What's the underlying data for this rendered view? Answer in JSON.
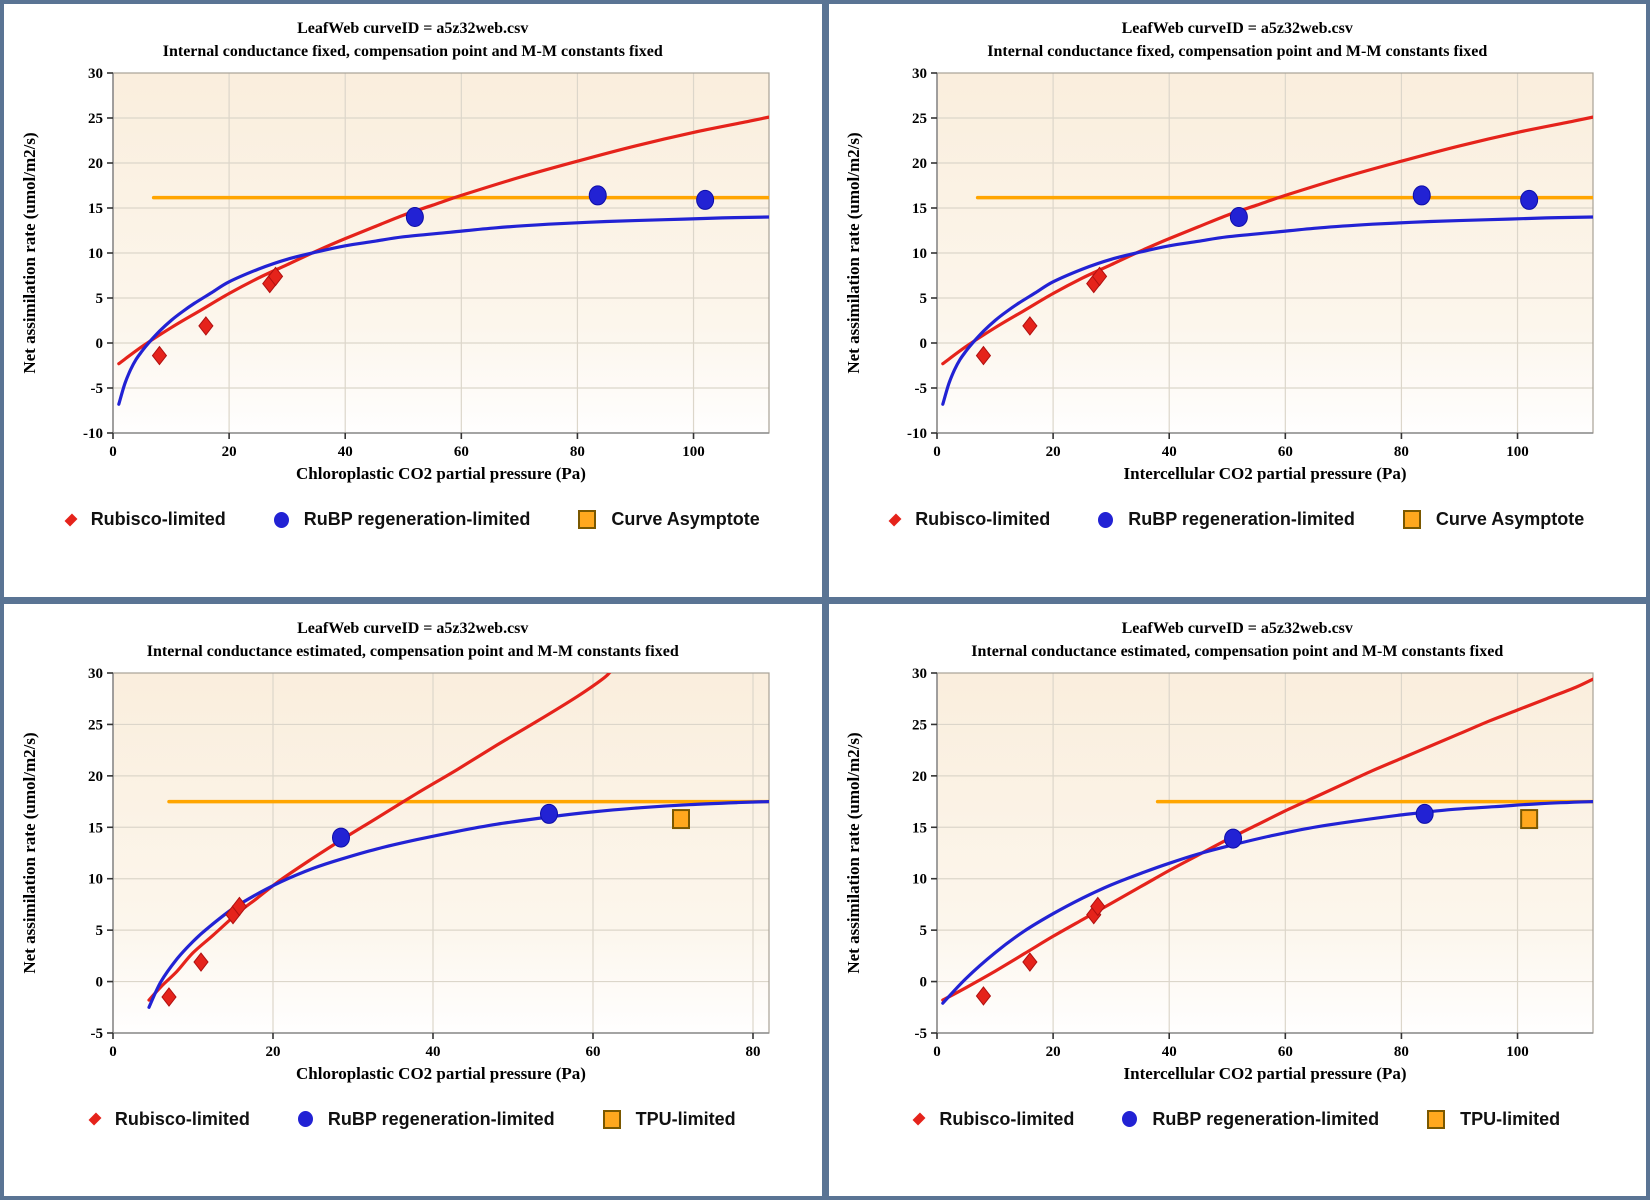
{
  "colors": {
    "frame_blue": "#5a7494",
    "red": "#e5231b",
    "red_dark": "#b01010",
    "blue": "#2222d4",
    "blue_dark": "#0d0da8",
    "orange": "#ffa500",
    "orange_fill": "#ffa81e",
    "orange_dark": "#7a5800",
    "grid": "#dcd6ca",
    "plot_border": "#a8a296",
    "axis_gray": "#8c8c8c",
    "tick": "#333333",
    "plot_bg_top": "#faeedd",
    "plot_bg_mid": "#fcf6ec",
    "plot_bg_bottom": "#fffefe"
  },
  "chart_data": [
    {
      "type": "scatter",
      "title": "LeafWeb curveID = a5z32web.csv",
      "subtitle": "Internal conductance fixed, compensation point and M-M constants fixed",
      "xlabel": "Chloroplastic CO2 partial pressure (Pa)",
      "ylabel": "Net assimilation rate (umol/m2/s)",
      "xlim": [
        0,
        113
      ],
      "ylim": [
        -10,
        30
      ],
      "xticks": [
        0,
        20,
        40,
        60,
        80,
        100
      ],
      "yticks": [
        -10,
        -5,
        0,
        5,
        10,
        15,
        20,
        25,
        30
      ],
      "grid": true,
      "legend_position": "bottom",
      "legend": [
        {
          "marker": "diamond",
          "label": "Rubisco-limited"
        },
        {
          "marker": "circle",
          "label": "RuBP regeneration-limited"
        },
        {
          "marker": "square",
          "label": "Curve Asymptote"
        }
      ],
      "asymptote": {
        "y": 16.15,
        "x_start": 7,
        "x_end": 113
      },
      "series": {
        "rubisco_points": [
          [
            8,
            -1.4
          ],
          [
            16,
            1.9
          ],
          [
            27,
            6.6
          ],
          [
            28,
            7.4
          ]
        ],
        "rubp_points": [
          [
            52,
            14
          ],
          [
            83.5,
            16.4
          ],
          [
            102,
            15.9
          ]
        ],
        "tpu_points": [],
        "rubisco_curve": [
          [
            1,
            -2.3
          ],
          [
            5,
            -0.4
          ],
          [
            10,
            1.7
          ],
          [
            15,
            3.6
          ],
          [
            20,
            5.5
          ],
          [
            25,
            7.2
          ],
          [
            30,
            8.7
          ],
          [
            35,
            10.2
          ],
          [
            40,
            11.6
          ],
          [
            45,
            12.9
          ],
          [
            50,
            14.2
          ],
          [
            55,
            15.3
          ],
          [
            60,
            16.4
          ],
          [
            70,
            18.4
          ],
          [
            80,
            20.2
          ],
          [
            90,
            21.9
          ],
          [
            100,
            23.4
          ],
          [
            110,
            24.7
          ],
          [
            113,
            25.1
          ]
        ],
        "rubp_curve": [
          [
            1,
            -6.8
          ],
          [
            2,
            -4.6
          ],
          [
            3,
            -3
          ],
          [
            4,
            -1.8
          ],
          [
            5,
            -0.9
          ],
          [
            6,
            -0.1
          ],
          [
            8,
            1.3
          ],
          [
            10,
            2.5
          ],
          [
            12,
            3.5
          ],
          [
            14,
            4.4
          ],
          [
            17,
            5.6
          ],
          [
            20,
            6.8
          ],
          [
            25,
            8.2
          ],
          [
            30,
            9.3
          ],
          [
            35,
            10.1
          ],
          [
            40,
            10.8
          ],
          [
            45,
            11.3
          ],
          [
            50,
            11.8
          ],
          [
            58,
            12.3
          ],
          [
            66,
            12.8
          ],
          [
            75,
            13.2
          ],
          [
            85,
            13.5
          ],
          [
            95,
            13.7
          ],
          [
            105,
            13.9
          ],
          [
            113,
            14
          ]
        ]
      }
    },
    {
      "type": "scatter",
      "title": "LeafWeb curveID = a5z32web.csv",
      "subtitle": "Internal conductance fixed, compensation point and M-M constants fixed",
      "xlabel": "Intercellular CO2 partial pressure (Pa)",
      "ylabel": "Net assimilation rate (umol/m2/s)",
      "xlim": [
        0,
        113
      ],
      "ylim": [
        -10,
        30
      ],
      "xticks": [
        0,
        20,
        40,
        60,
        80,
        100
      ],
      "yticks": [
        -10,
        -5,
        0,
        5,
        10,
        15,
        20,
        25,
        30
      ],
      "grid": true,
      "legend_position": "bottom",
      "legend": [
        {
          "marker": "diamond",
          "label": "Rubisco-limited"
        },
        {
          "marker": "circle",
          "label": "RuBP regeneration-limited"
        },
        {
          "marker": "square",
          "label": "Curve Asymptote"
        }
      ],
      "asymptote": {
        "y": 16.15,
        "x_start": 7,
        "x_end": 113
      },
      "series": {
        "rubisco_points": [
          [
            8,
            -1.4
          ],
          [
            16,
            1.9
          ],
          [
            27,
            6.6
          ],
          [
            28,
            7.4
          ]
        ],
        "rubp_points": [
          [
            52,
            14
          ],
          [
            83.5,
            16.4
          ],
          [
            102,
            15.9
          ]
        ],
        "tpu_points": [],
        "rubisco_curve": [
          [
            1,
            -2.3
          ],
          [
            5,
            -0.4
          ],
          [
            10,
            1.7
          ],
          [
            15,
            3.6
          ],
          [
            20,
            5.5
          ],
          [
            25,
            7.2
          ],
          [
            30,
            8.7
          ],
          [
            35,
            10.2
          ],
          [
            40,
            11.6
          ],
          [
            45,
            12.9
          ],
          [
            50,
            14.2
          ],
          [
            55,
            15.3
          ],
          [
            60,
            16.4
          ],
          [
            70,
            18.4
          ],
          [
            80,
            20.2
          ],
          [
            90,
            21.9
          ],
          [
            100,
            23.4
          ],
          [
            110,
            24.7
          ],
          [
            113,
            25.1
          ]
        ],
        "rubp_curve": [
          [
            1,
            -6.8
          ],
          [
            2,
            -4.6
          ],
          [
            3,
            -3
          ],
          [
            4,
            -1.8
          ],
          [
            5,
            -0.9
          ],
          [
            6,
            -0.1
          ],
          [
            8,
            1.3
          ],
          [
            10,
            2.5
          ],
          [
            12,
            3.5
          ],
          [
            14,
            4.4
          ],
          [
            17,
            5.6
          ],
          [
            20,
            6.8
          ],
          [
            25,
            8.2
          ],
          [
            30,
            9.3
          ],
          [
            35,
            10.1
          ],
          [
            40,
            10.8
          ],
          [
            45,
            11.3
          ],
          [
            50,
            11.8
          ],
          [
            58,
            12.3
          ],
          [
            66,
            12.8
          ],
          [
            75,
            13.2
          ],
          [
            85,
            13.5
          ],
          [
            95,
            13.7
          ],
          [
            105,
            13.9
          ],
          [
            113,
            14
          ]
        ]
      }
    },
    {
      "type": "scatter",
      "title": "LeafWeb curveID = a5z32web.csv",
      "subtitle": "Internal conductance estimated, compensation point and M-M constants fixed",
      "xlabel": "Chloroplastic CO2 partial pressure (Pa)",
      "ylabel": "Net assimilation rate (umol/m2/s)",
      "xlim": [
        0,
        82
      ],
      "ylim": [
        -5,
        30
      ],
      "xticks": [
        0,
        20,
        40,
        60,
        80
      ],
      "yticks": [
        -5,
        0,
        5,
        10,
        15,
        20,
        25,
        30
      ],
      "grid": true,
      "legend_position": "bottom",
      "legend": [
        {
          "marker": "diamond",
          "label": "Rubisco-limited"
        },
        {
          "marker": "circle",
          "label": "RuBP regeneration-limited"
        },
        {
          "marker": "square",
          "label": "TPU-limited"
        }
      ],
      "asymptote": {
        "y": 17.5,
        "x_start": 7,
        "x_end": 82
      },
      "series": {
        "rubisco_points": [
          [
            7,
            -1.5
          ],
          [
            11,
            1.9
          ],
          [
            15,
            6.5
          ],
          [
            15.8,
            7.3
          ]
        ],
        "rubp_points": [
          [
            28.5,
            14
          ],
          [
            54.5,
            16.3
          ]
        ],
        "tpu_points": [
          [
            71,
            15.8
          ]
        ],
        "rubisco_curve": [
          [
            4.5,
            -1.8
          ],
          [
            6,
            -0.5
          ],
          [
            8,
            1
          ],
          [
            10,
            2.8
          ],
          [
            12.5,
            4.5
          ],
          [
            15.5,
            6.6
          ],
          [
            18,
            8.1
          ],
          [
            21,
            9.9
          ],
          [
            25,
            12
          ],
          [
            29,
            14
          ],
          [
            33,
            15.9
          ],
          [
            38,
            18.3
          ],
          [
            43,
            20.6
          ],
          [
            48,
            23
          ],
          [
            53,
            25.3
          ],
          [
            58,
            27.7
          ],
          [
            61.5,
            29.6
          ],
          [
            62.5,
            30.5
          ]
        ],
        "rubp_curve": [
          [
            4.5,
            -2.5
          ],
          [
            6,
            0
          ],
          [
            8,
            2.2
          ],
          [
            10,
            3.9
          ],
          [
            12,
            5.3
          ],
          [
            15,
            7.1
          ],
          [
            18,
            8.5
          ],
          [
            21,
            9.7
          ],
          [
            25,
            11
          ],
          [
            28.5,
            11.9
          ],
          [
            33,
            12.9
          ],
          [
            38,
            13.8
          ],
          [
            43,
            14.6
          ],
          [
            48,
            15.3
          ],
          [
            54.5,
            16
          ],
          [
            60,
            16.5
          ],
          [
            66,
            16.9
          ],
          [
            72,
            17.2
          ],
          [
            78,
            17.4
          ],
          [
            82,
            17.5
          ]
        ]
      }
    },
    {
      "type": "scatter",
      "title": "LeafWeb curveID = a5z32web.csv",
      "subtitle": "Internal conductance estimated, compensation point and M-M constants fixed",
      "xlabel": "Intercellular CO2 partial pressure (Pa)",
      "ylabel": "Net assimilation rate (umol/m2/s)",
      "xlim": [
        0,
        113
      ],
      "ylim": [
        -5,
        30
      ],
      "xticks": [
        0,
        20,
        40,
        60,
        80,
        100
      ],
      "yticks": [
        -5,
        0,
        5,
        10,
        15,
        20,
        25,
        30
      ],
      "grid": true,
      "legend_position": "bottom",
      "legend": [
        {
          "marker": "diamond",
          "label": "Rubisco-limited"
        },
        {
          "marker": "circle",
          "label": "RuBP regeneration-limited"
        },
        {
          "marker": "square",
          "label": "TPU-limited"
        }
      ],
      "asymptote": {
        "y": 17.5,
        "x_start": 38,
        "x_end": 113
      },
      "series": {
        "rubisco_points": [
          [
            8,
            -1.4
          ],
          [
            16,
            1.9
          ],
          [
            27,
            6.5
          ],
          [
            27.7,
            7.3
          ]
        ],
        "rubp_points": [
          [
            51,
            13.9
          ],
          [
            84,
            16.3
          ]
        ],
        "tpu_points": [
          [
            102,
            15.8
          ]
        ],
        "rubisco_curve": [
          [
            1,
            -1.8
          ],
          [
            5,
            -0.6
          ],
          [
            10,
            1
          ],
          [
            15,
            2.7
          ],
          [
            20,
            4.4
          ],
          [
            25,
            6
          ],
          [
            30,
            7.6
          ],
          [
            35,
            9.2
          ],
          [
            40,
            10.8
          ],
          [
            45,
            12.3
          ],
          [
            50,
            13.8
          ],
          [
            55,
            15.2
          ],
          [
            60,
            16.6
          ],
          [
            65,
            17.9
          ],
          [
            70,
            19.2
          ],
          [
            75,
            20.5
          ],
          [
            80,
            21.7
          ],
          [
            85,
            22.9
          ],
          [
            90,
            24.1
          ],
          [
            95,
            25.3
          ],
          [
            100,
            26.4
          ],
          [
            105,
            27.5
          ],
          [
            110,
            28.6
          ],
          [
            113,
            29.4
          ]
        ],
        "rubp_curve": [
          [
            1,
            -2.1
          ],
          [
            5,
            0.3
          ],
          [
            10,
            2.8
          ],
          [
            15,
            4.9
          ],
          [
            20,
            6.6
          ],
          [
            25,
            8.1
          ],
          [
            30,
            9.4
          ],
          [
            35,
            10.5
          ],
          [
            40,
            11.5
          ],
          [
            45,
            12.4
          ],
          [
            51,
            13.3
          ],
          [
            57,
            14.1
          ],
          [
            64,
            14.9
          ],
          [
            72,
            15.6
          ],
          [
            80,
            16.2
          ],
          [
            88,
            16.7
          ],
          [
            96,
            17
          ],
          [
            104,
            17.3
          ],
          [
            113,
            17.5
          ]
        ]
      }
    }
  ]
}
